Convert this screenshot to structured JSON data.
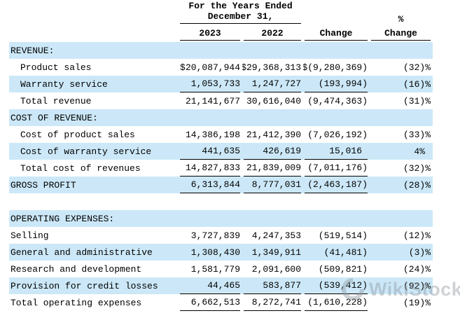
{
  "header": {
    "period_line1": "For the Years Ended",
    "period_line2": "December 31,",
    "col_2023": "2023",
    "col_2022": "2022",
    "col_change": "Change",
    "col_pct_line1": "%",
    "col_pct_line2": "Change"
  },
  "colors": {
    "stripe": "#cce8f8",
    "text": "#000000",
    "rule": "#000000",
    "watermark_gray": "#8d969e"
  },
  "watermark": {
    "text": "WikiStock",
    "icon": "swirl-logo"
  },
  "rows": [
    {
      "label": "REVENUE:",
      "type": "section",
      "shaded": true,
      "indent": 0,
      "values": [
        "",
        "",
        "",
        ""
      ]
    },
    {
      "label": "Product sales",
      "type": "data",
      "shaded": false,
      "indent": 1,
      "dollar": true,
      "values": [
        "20,087,944",
        "29,368,313",
        "(9,280,369)",
        "(32)%"
      ]
    },
    {
      "label": "Warranty service",
      "type": "data",
      "shaded": true,
      "indent": 1,
      "underline": true,
      "values": [
        "1,053,733",
        "1,247,727",
        "(193,994)",
        "(16)%"
      ]
    },
    {
      "label": "Total revenue",
      "type": "data",
      "shaded": false,
      "indent": 1,
      "values": [
        "21,141,677",
        "30,616,040",
        "(9,474,363)",
        "(31)%"
      ]
    },
    {
      "label": "COST OF REVENUE:",
      "type": "section",
      "shaded": true,
      "indent": 0,
      "values": [
        "",
        "",
        "",
        ""
      ]
    },
    {
      "label": "Cost of product sales",
      "type": "data",
      "shaded": false,
      "indent": 1,
      "values": [
        "14,386,198",
        "21,412,390",
        "(7,026,192)",
        "(33)%"
      ]
    },
    {
      "label": "Cost of warranty service",
      "type": "data",
      "shaded": true,
      "indent": 1,
      "underline": true,
      "values": [
        "441,635",
        "426,619",
        "15,016",
        "4%"
      ]
    },
    {
      "label": "Total cost of revenues",
      "type": "data",
      "shaded": false,
      "indent": 1,
      "underline": true,
      "values": [
        "14,827,833",
        "21,839,009",
        "(7,011,176)",
        "(32)%"
      ]
    },
    {
      "label": "GROSS PROFIT",
      "type": "data",
      "shaded": true,
      "indent": 0,
      "underline": true,
      "values": [
        "6,313,844",
        "8,777,031",
        "(2,463,187)",
        "(28)%"
      ]
    },
    {
      "label": "",
      "type": "spacer",
      "shaded": false,
      "indent": 0,
      "values": [
        "",
        "",
        "",
        ""
      ]
    },
    {
      "label": "OPERATING EXPENSES:",
      "type": "section",
      "shaded": true,
      "indent": 0,
      "values": [
        "",
        "",
        "",
        ""
      ]
    },
    {
      "label": "Selling",
      "type": "data",
      "shaded": false,
      "indent": 0,
      "values": [
        "3,727,839",
        "4,247,353",
        "(519,514)",
        "(12)%"
      ]
    },
    {
      "label": "General and administrative",
      "type": "data",
      "shaded": true,
      "indent": 0,
      "values": [
        "1,308,430",
        "1,349,911",
        "(41,481)",
        "(3)%"
      ]
    },
    {
      "label": "Research and development",
      "type": "data",
      "shaded": false,
      "indent": 0,
      "values": [
        "1,581,779",
        "2,091,600",
        "(509,821)",
        "(24)%"
      ]
    },
    {
      "label": "Provision for credit losses",
      "type": "data",
      "shaded": true,
      "indent": 0,
      "underline": true,
      "values": [
        "44,465",
        "583,877",
        "(539,412)",
        "(92)%"
      ]
    },
    {
      "label": "Total operating expenses",
      "type": "data",
      "shaded": false,
      "indent": 0,
      "underline": true,
      "values": [
        "6,662,513",
        "8,272,741",
        "(1,610,228)",
        "(19)%"
      ]
    }
  ]
}
